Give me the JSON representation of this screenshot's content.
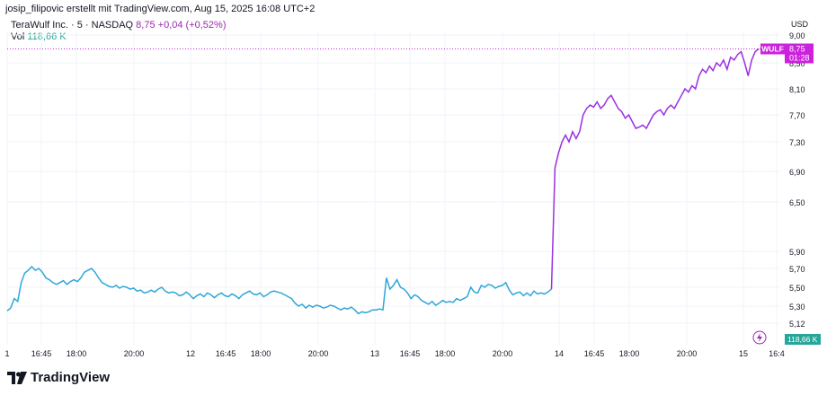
{
  "header": {
    "author_line": "josip_filipovic erstellt mit TradingView.com, Aug 15, 2025 16:08 UTC+2"
  },
  "legend": {
    "symbol_line": "TeraWulf Inc. · 5 · NASDAQ",
    "price": "8,75",
    "change": "+0,04 (+0,52%)",
    "vol_label": "Vol",
    "vol_value": "118,66 K"
  },
  "badges": {
    "currency": "USD",
    "ticker": "WULF",
    "price": "8,75",
    "countdown": "01:28",
    "volume": "118,66 K"
  },
  "brand": {
    "name": "TradingView"
  },
  "colors": {
    "line_before": "#2ea6d8",
    "line_after": "#9b30e0",
    "badge": "#cc22dd",
    "volume_badge": "#26a69a"
  },
  "icons": {
    "brand_logo": "tradingview-logo-icon",
    "lightning": "lightning-icon"
  },
  "chart_data": {
    "type": "line",
    "title": "",
    "xlabel": "",
    "ylabel": "",
    "x_ticks": [
      "1",
      "16:45",
      "18:00",
      "20:00",
      "12",
      "16:45",
      "18:00",
      "20:00",
      "13",
      "16:45",
      "18:00",
      "20:00",
      "14",
      "16:45",
      "18:00",
      "20:00",
      "15",
      "16:4"
    ],
    "y_ticks": [
      "9,00",
      "8,50",
      "8,10",
      "7,70",
      "7,30",
      "6,90",
      "6,50",
      "5,90",
      "5,70",
      "5,50",
      "5,30",
      "5,12"
    ],
    "last_price": 8.75,
    "series": [
      {
        "values": [
          5.25,
          5.28,
          5.38,
          5.35,
          5.55,
          5.65,
          5.68,
          5.72,
          5.68,
          5.7,
          5.66,
          5.6,
          5.58,
          5.55,
          5.53,
          5.55,
          5.57,
          5.53,
          5.56,
          5.58,
          5.56,
          5.6,
          5.66,
          5.68,
          5.7,
          5.66,
          5.6,
          5.55,
          5.53,
          5.51,
          5.5,
          5.52,
          5.49,
          5.51,
          5.5,
          5.48,
          5.49,
          5.46,
          5.47,
          5.44,
          5.45,
          5.47,
          5.45,
          5.48,
          5.5,
          5.46,
          5.44,
          5.45,
          5.44,
          5.41,
          5.42,
          5.45,
          5.42,
          5.38,
          5.41,
          5.43,
          5.4,
          5.44,
          5.42,
          5.39,
          5.42,
          5.44,
          5.41,
          5.4,
          5.43,
          5.41,
          5.38,
          5.42,
          5.44,
          5.46,
          5.43,
          5.42,
          5.44,
          5.4,
          5.42,
          5.45,
          5.46,
          5.45,
          5.44,
          5.42,
          5.4,
          5.38,
          5.33,
          5.3,
          5.32,
          5.28,
          5.31,
          5.29,
          5.31,
          5.3,
          5.28,
          5.29,
          5.31,
          5.3,
          5.28,
          5.26,
          5.28,
          5.27,
          5.29,
          5.26,
          5.22,
          5.24,
          5.23,
          5.24,
          5.26,
          5.26,
          5.27,
          5.26,
          5.6,
          5.48,
          5.52,
          5.58,
          5.5,
          5.48,
          5.44,
          5.38,
          5.42,
          5.4,
          5.36,
          5.34,
          5.32,
          5.35,
          5.31,
          5.33,
          5.36,
          5.34,
          5.35,
          5.34,
          5.38,
          5.36,
          5.38,
          5.4,
          5.5,
          5.45,
          5.44,
          5.52,
          5.5,
          5.53,
          5.52,
          5.49,
          5.51,
          5.52,
          5.55,
          5.47,
          5.42,
          5.44,
          5.45,
          5.41,
          5.44,
          5.41,
          5.46,
          5.43,
          5.44,
          5.43,
          5.45,
          5.48,
          6.95,
          7.15,
          7.3,
          7.4,
          7.3,
          7.45,
          7.35,
          7.45,
          7.7,
          7.8,
          7.85,
          7.82,
          7.9,
          7.8,
          7.85,
          7.95,
          8.0,
          7.9,
          7.8,
          7.75,
          7.65,
          7.7,
          7.6,
          7.5,
          7.52,
          7.55,
          7.5,
          7.6,
          7.7,
          7.75,
          7.78,
          7.7,
          7.8,
          7.85,
          7.8,
          7.9,
          8.0,
          8.1,
          8.05,
          8.15,
          8.1,
          8.3,
          8.4,
          8.35,
          8.45,
          8.38,
          8.5,
          8.45,
          8.55,
          8.4,
          8.6,
          8.55,
          8.65,
          8.7,
          8.5,
          8.3,
          8.55,
          8.7,
          8.75
        ]
      }
    ],
    "grid": true,
    "legend_position": "top-left",
    "y_axis_position": "right"
  }
}
